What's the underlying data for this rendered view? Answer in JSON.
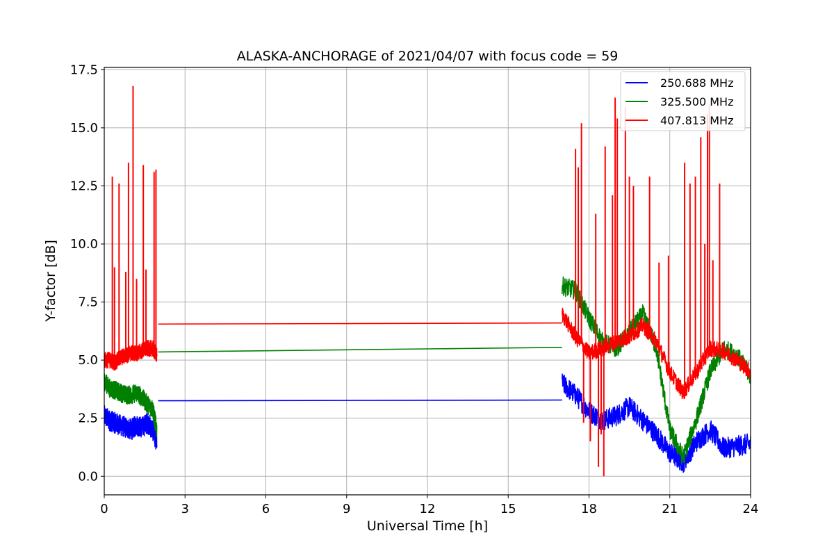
{
  "chart_data": {
    "type": "line",
    "title": "ALASKA-ANCHORAGE of 2021/04/07 with focus code = 59",
    "xlabel": "Universal Time [h]",
    "ylabel": "Y-factor [dB]",
    "xlim": [
      0,
      24
    ],
    "ylim": [
      -0.8,
      17.6
    ],
    "xticks": [
      0,
      3,
      6,
      9,
      12,
      15,
      18,
      21,
      24
    ],
    "xtick_labels": [
      "0",
      "3",
      "6",
      "9",
      "12",
      "15",
      "18",
      "21",
      "24"
    ],
    "yticks": [
      0.0,
      2.5,
      5.0,
      7.5,
      10.0,
      12.5,
      15.0,
      17.5
    ],
    "ytick_labels": [
      "0.0",
      "2.5",
      "5.0",
      "7.5",
      "10.0",
      "12.5",
      "15.0",
      "17.5"
    ],
    "grid": true,
    "legend_position": "top-right",
    "series": [
      {
        "name": "250.688 MHz",
        "color": "#0000ff",
        "segments": [
          {
            "x": [
              0.0,
              0.2,
              0.4,
              0.6,
              0.8,
              1.0,
              1.2,
              1.4,
              1.6,
              1.8,
              1.95
            ],
            "y": [
              2.6,
              2.4,
              2.3,
              2.2,
              2.1,
              2.0,
              2.2,
              2.1,
              2.3,
              2.0,
              1.5
            ]
          },
          {
            "x": [
              2.0,
              17.0
            ],
            "y": [
              3.25,
              3.28
            ]
          },
          {
            "x": [
              17.0,
              17.5,
              18.0,
              18.5,
              19.0,
              19.5,
              20.0,
              20.5,
              21.0,
              21.5,
              22.0,
              22.5,
              23.0,
              23.5,
              24.0
            ],
            "y": [
              4.0,
              3.5,
              2.8,
              2.4,
              2.6,
              3.0,
              2.4,
              1.8,
              1.0,
              0.6,
              1.5,
              2.0,
              1.2,
              1.3,
              1.4
            ]
          }
        ]
      },
      {
        "name": "325.500 MHz",
        "color": "#008000",
        "segments": [
          {
            "x": [
              0.0,
              0.2,
              0.4,
              0.6,
              0.8,
              1.0,
              1.2,
              1.4,
              1.6,
              1.8,
              1.95
            ],
            "y": [
              4.1,
              3.8,
              3.7,
              3.6,
              3.5,
              3.5,
              3.6,
              3.4,
              3.1,
              2.9,
              2.0
            ]
          },
          {
            "x": [
              2.0,
              17.0
            ],
            "y": [
              5.35,
              5.55
            ]
          },
          {
            "x": [
              17.0,
              17.5,
              18.0,
              18.5,
              19.0,
              19.5,
              20.0,
              20.5,
              21.0,
              21.5,
              22.0,
              22.5,
              23.0,
              23.5,
              24.0
            ],
            "y": [
              8.2,
              8.0,
              6.8,
              5.8,
              5.5,
              6.2,
              7.0,
              5.5,
              2.0,
              0.8,
              2.5,
              4.5,
              5.5,
              5.2,
              4.3
            ]
          }
        ]
      },
      {
        "name": "407.813 MHz",
        "color": "#ff0000",
        "segments": [
          {
            "x": [
              0.0,
              0.2,
              0.4,
              0.6,
              0.8,
              1.0,
              1.2,
              1.4,
              1.6,
              1.8,
              1.95
            ],
            "y": [
              5.0,
              5.0,
              4.9,
              5.1,
              5.2,
              5.3,
              5.3,
              5.4,
              5.5,
              5.5,
              5.2
            ]
          },
          {
            "x": [
              2.0,
              17.0
            ],
            "y": [
              6.55,
              6.6
            ]
          },
          {
            "x": [
              17.0,
              17.5,
              18.0,
              18.5,
              19.0,
              19.5,
              20.0,
              20.5,
              21.0,
              21.5,
              22.0,
              22.5,
              23.0,
              23.5,
              24.0
            ],
            "y": [
              7.0,
              6.0,
              5.3,
              5.5,
              5.8,
              6.0,
              6.5,
              5.8,
              4.5,
              3.6,
              4.5,
              5.5,
              5.4,
              5.0,
              4.5
            ]
          }
        ],
        "spikes": [
          {
            "x": 0.3,
            "y": 12.9
          },
          {
            "x": 0.38,
            "y": 9.0
          },
          {
            "x": 0.55,
            "y": 12.6
          },
          {
            "x": 0.8,
            "y": 8.8
          },
          {
            "x": 0.9,
            "y": 13.5
          },
          {
            "x": 1.07,
            "y": 16.8
          },
          {
            "x": 1.2,
            "y": 8.5
          },
          {
            "x": 1.45,
            "y": 13.4
          },
          {
            "x": 1.55,
            "y": 8.9
          },
          {
            "x": 1.85,
            "y": 13.1
          },
          {
            "x": 1.92,
            "y": 13.2
          },
          {
            "x": 17.5,
            "y": 14.1
          },
          {
            "x": 17.6,
            "y": 13.3
          },
          {
            "x": 17.72,
            "y": 15.2
          },
          {
            "x": 18.25,
            "y": 11.3
          },
          {
            "x": 18.6,
            "y": 14.2
          },
          {
            "x": 18.87,
            "y": 12.1
          },
          {
            "x": 18.97,
            "y": 16.3
          },
          {
            "x": 19.05,
            "y": 15.4
          },
          {
            "x": 19.35,
            "y": 15.9
          },
          {
            "x": 19.5,
            "y": 12.9
          },
          {
            "x": 19.65,
            "y": 12.5
          },
          {
            "x": 20.25,
            "y": 12.9
          },
          {
            "x": 20.6,
            "y": 9.2
          },
          {
            "x": 20.95,
            "y": 9.5
          },
          {
            "x": 21.55,
            "y": 13.5
          },
          {
            "x": 21.75,
            "y": 12.6
          },
          {
            "x": 21.95,
            "y": 12.9
          },
          {
            "x": 22.15,
            "y": 14.6
          },
          {
            "x": 22.3,
            "y": 10.0
          },
          {
            "x": 22.4,
            "y": 15.6
          },
          {
            "x": 22.47,
            "y": 16.0
          },
          {
            "x": 22.6,
            "y": 9.3
          },
          {
            "x": 22.85,
            "y": 12.6
          }
        ],
        "dips": [
          {
            "x": 17.8,
            "y": 2.3
          },
          {
            "x": 18.05,
            "y": 1.5
          },
          {
            "x": 18.35,
            "y": 0.4
          },
          {
            "x": 18.45,
            "y": 1.8
          },
          {
            "x": 18.55,
            "y": 0.0
          }
        ]
      }
    ]
  }
}
